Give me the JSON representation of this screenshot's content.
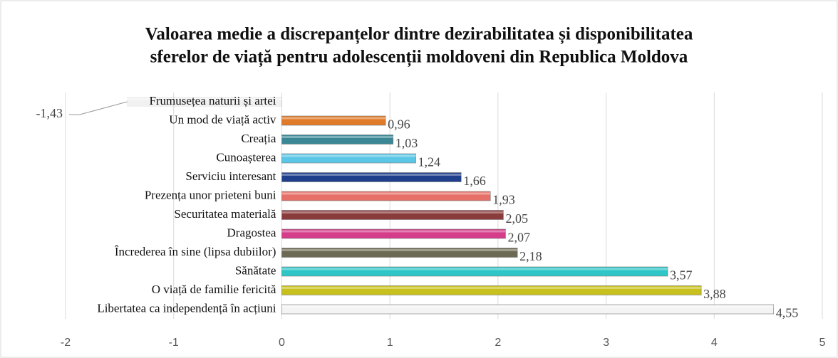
{
  "chart_data": {
    "type": "bar",
    "orientation": "horizontal",
    "title": [
      "Valoarea medie a discrepanțelor dintre dezirabilitatea și disponibilitatea",
      "sferelor de viață pentru adolescenții moldoveni din Republica Moldova"
    ],
    "categories": [
      "Frumusețea naturii și artei",
      "Un mod de viață activ",
      "Creația ",
      "Cunoașterea",
      "Serviciu interesant",
      "Prezența unor prieteni buni",
      "Securitatea materială",
      "Dragostea",
      "Încrederea în sine (lipsa dubiilor)",
      "Sănătate",
      "O viață de familie fericită",
      "Libertatea ca independență în acțiuni"
    ],
    "values": [
      -1.43,
      0.96,
      1.03,
      1.24,
      1.66,
      1.93,
      2.05,
      2.07,
      2.18,
      3.57,
      3.88,
      4.55
    ],
    "value_labels": [
      "-1,43",
      "0,96",
      "1,03",
      "1,24",
      "1,66",
      "1,93",
      "2,05",
      "2,07",
      "2,18",
      "3,57",
      "3,88",
      "4,55"
    ],
    "colors": [
      "#a8a8a8",
      "#e07b2a",
      "#3b8796",
      "#5cc6e6",
      "#1f3e8c",
      "#e66f68",
      "#8a3b3b",
      "#d53c8a",
      "#6c6a52",
      "#2fc6c8",
      "#c8c01e",
      "#f4f4f4"
    ],
    "xlim": [
      -2,
      5
    ],
    "xticks": [
      -2,
      -1,
      0,
      1,
      2,
      3,
      4,
      5
    ],
    "grid": true
  }
}
